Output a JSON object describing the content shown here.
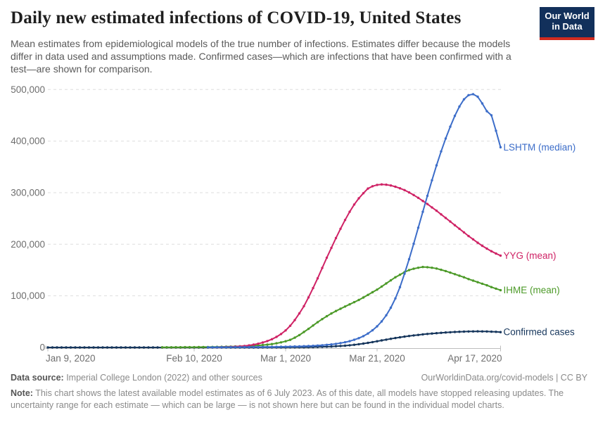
{
  "header": {
    "title": "Daily new estimated infections of COVID-19, United States",
    "subtitle": "Mean estimates from epidemiological models of the true number of infections. Estimates differ because the models differ in data used and assumptions made. Confirmed cases—which are infections that have been confirmed with a test—are shown for comparison.",
    "logo": {
      "line1": "Our World",
      "line2": "in Data",
      "bg_color": "#12305b",
      "bar_color": "#d12b1f"
    }
  },
  "chart_data": {
    "type": "line",
    "title": "Daily new estimated infections of COVID-19, United States",
    "xlabel": "",
    "ylabel": "",
    "x_unit": "days since Jan 9, 2020",
    "x_start_date": "Jan 9, 2020",
    "x_end_date": "Apr 17, 2020",
    "xlim_days": [
      0,
      99
    ],
    "ylim": [
      0,
      500000
    ],
    "grid": "dashed horizontal gridlines",
    "legend_position": "labels at line ends (right side)",
    "x_ticks": [
      {
        "day": 0,
        "label": "Jan 9, 2020"
      },
      {
        "day": 32,
        "label": "Feb 10, 2020"
      },
      {
        "day": 52,
        "label": "Mar 1, 2020"
      },
      {
        "day": 72,
        "label": "Mar 21, 2020"
      },
      {
        "day": 99,
        "label": "Apr 17, 2020"
      }
    ],
    "y_ticks": [
      {
        "value": 0,
        "label": "0"
      },
      {
        "value": 100000,
        "label": "100,000"
      },
      {
        "value": 200000,
        "label": "200,000"
      },
      {
        "value": 300000,
        "label": "300,000"
      },
      {
        "value": 400000,
        "label": "400,000"
      },
      {
        "value": 500000,
        "label": "500,000"
      }
    ],
    "series": [
      {
        "name": "Confirmed cases",
        "color": "#16365c",
        "start_day": 0,
        "values": [
          0,
          0,
          0,
          0,
          0,
          0,
          0,
          0,
          0,
          0,
          0,
          0,
          0,
          0,
          0,
          0,
          0,
          0,
          0,
          0,
          0,
          0,
          0,
          0,
          0,
          0,
          0,
          0,
          0,
          0,
          0,
          0,
          0,
          0,
          0,
          0,
          0,
          0,
          0,
          0,
          0,
          0,
          30,
          35,
          40,
          50,
          60,
          70,
          85,
          100,
          120,
          150,
          185,
          230,
          290,
          370,
          470,
          590,
          740,
          930,
          1170,
          1460,
          1820,
          2260,
          2800,
          3450,
          4230,
          5150,
          6230,
          7480,
          8900,
          10400,
          12000,
          13600,
          15200,
          16800,
          18300,
          19700,
          21000,
          22200,
          23300,
          24300,
          25300,
          26200,
          27000,
          27700,
          28400,
          29000,
          29500,
          30000,
          30400,
          30700,
          30900,
          31100,
          31200,
          31100,
          30900,
          30600,
          30200,
          29700
        ]
      },
      {
        "name": "IHME (mean)",
        "color": "#4c9a28",
        "start_day": 25,
        "values": [
          280,
          300,
          340,
          380,
          430,
          480,
          540,
          610,
          690,
          780,
          880,
          1000,
          1130,
          1280,
          1450,
          1650,
          1900,
          2200,
          2550,
          2950,
          3450,
          4000,
          4700,
          5500,
          6600,
          8000,
          9800,
          12000,
          14700,
          19000,
          24000,
          30000,
          36000,
          42500,
          49000,
          55000,
          60500,
          65800,
          70600,
          75000,
          79300,
          83600,
          87800,
          92000,
          96800,
          101800,
          107000,
          112000,
          118000,
          124000,
          130000,
          136000,
          141000,
          146000,
          150000,
          152500,
          154500,
          156000,
          155500,
          154500,
          153000,
          150500,
          148000,
          145000,
          142000,
          139000,
          136000,
          132500,
          129500,
          126500,
          123500,
          120500,
          117000,
          114000,
          111000
        ]
      },
      {
        "name": "YYG (mean)",
        "color": "#cf2265",
        "start_day": 37,
        "values": [
          300,
          500,
          750,
          1050,
          1500,
          2100,
          2900,
          4000,
          5400,
          7200,
          9500,
          12400,
          16000,
          20500,
          26000,
          33000,
          42000,
          53000,
          66000,
          80000,
          97000,
          115000,
          134000,
          154000,
          174000,
          193000,
          212000,
          230000,
          247000,
          263000,
          277000,
          289000,
          299000,
          308000,
          312500,
          315000,
          316000,
          315500,
          314000,
          311500,
          308500,
          305000,
          300500,
          295500,
          290000,
          284000,
          278000,
          271500,
          265000,
          258000,
          251000,
          244000,
          237000,
          230000,
          223000,
          216000,
          209500,
          203000,
          197000,
          191500,
          186500,
          182000,
          178000
        ]
      },
      {
        "name": "LSHTM (median)",
        "color": "#3c6dc9",
        "start_day": 35,
        "values": [
          300,
          330,
          360,
          400,
          440,
          480,
          530,
          580,
          640,
          700,
          770,
          850,
          930,
          1020,
          1120,
          1230,
          1350,
          1500,
          1650,
          1850,
          2100,
          2400,
          2750,
          3150,
          3650,
          4250,
          5000,
          5900,
          7000,
          8400,
          10100,
          12200,
          14800,
          18000,
          22000,
          27000,
          33200,
          40900,
          50500,
          62300,
          77000,
          95000,
          117000,
          143000,
          171000,
          201000,
          232000,
          263000,
          294000,
          324000,
          353000,
          380000,
          405000,
          428000,
          449000,
          467000,
          481000,
          489000,
          491000,
          486000,
          473000,
          458000,
          450000,
          420000,
          388000
        ]
      }
    ]
  },
  "footer": {
    "datasource_label": "Data source:",
    "datasource_text": " Imperial College London (2022) and other sources",
    "link_text": "OurWorldinData.org/covid-models | CC BY",
    "note_label": "Note:",
    "note_text": " This chart shows the latest available model estimates as of 6 July 2023. As of this date, all models have stopped releasing updates. The uncertainty range for each estimate — which can be large — is not shown here but can be found in the individual model charts."
  }
}
